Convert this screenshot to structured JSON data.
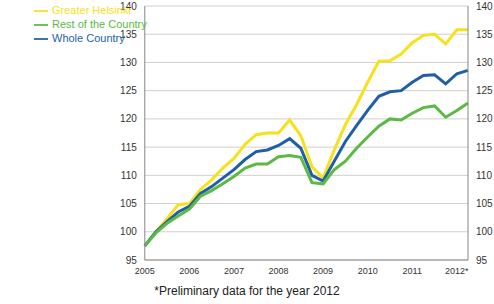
{
  "chart_data": {
    "type": "line",
    "annotations": [
      "*Preliminary data for the year 2012"
    ],
    "categories": [
      "2005",
      null,
      null,
      null,
      "2006",
      null,
      null,
      null,
      "2007",
      null,
      null,
      null,
      "2008",
      null,
      null,
      null,
      "2009",
      null,
      null,
      null,
      "2010",
      null,
      null,
      null,
      "2011",
      null,
      null,
      null,
      "2012*",
      null
    ],
    "series": [
      {
        "name": "Greater Helsinki",
        "color": "#f7e11b",
        "values": [
          97.5,
          100,
          102.3,
          104.8,
          105,
          107.5,
          109.2,
          111.3,
          113,
          115.5,
          117.2,
          117.5,
          117.5,
          119.8,
          117,
          111.5,
          109.5,
          114.5,
          119,
          122.5,
          126.5,
          130.2,
          130.3,
          131.5,
          133.5,
          134.8,
          135,
          133.3,
          135.8,
          135.8
        ]
      },
      {
        "name": "Whole Country",
        "color": "#1f5fa8",
        "values": [
          97.5,
          100,
          101.8,
          103.5,
          104.5,
          106.8,
          108,
          109.5,
          111,
          112.8,
          114.2,
          114.5,
          115.3,
          116.5,
          114.8,
          110,
          109,
          112.5,
          116,
          118.8,
          121.5,
          124,
          124.8,
          125,
          126.5,
          127.7,
          127.8,
          126.2,
          128,
          128.6
        ]
      },
      {
        "name": "Rest of the Country",
        "color": "#5cb946",
        "values": [
          97.5,
          99.8,
          101.5,
          102.8,
          104,
          106.3,
          107.3,
          108.5,
          109.8,
          111.3,
          112,
          112,
          113.3,
          113.5,
          113.2,
          108.7,
          108.5,
          111,
          112.5,
          114.8,
          116.8,
          118.7,
          120,
          119.8,
          121,
          122,
          122.3,
          120.3,
          121.5,
          122.8
        ]
      }
    ],
    "ylim": [
      95,
      140
    ],
    "yticks": [
      95,
      100,
      105,
      110,
      115,
      120,
      125,
      130,
      135,
      140
    ],
    "y2lim": [
      95,
      140
    ],
    "y2ticks": [
      95,
      100,
      105,
      110,
      115,
      120,
      125,
      130,
      135,
      140
    ],
    "grid": true,
    "legend": "upper left"
  }
}
